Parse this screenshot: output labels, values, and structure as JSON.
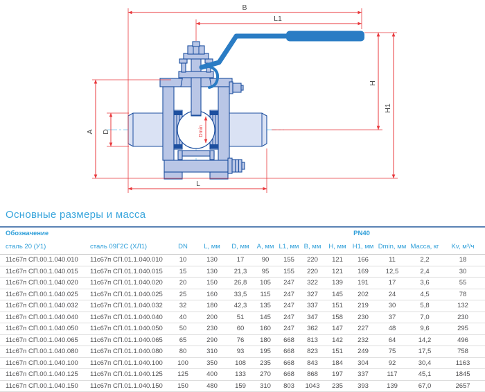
{
  "drawing": {
    "dim_labels": {
      "B": "B",
      "L1": "L1",
      "H": "H",
      "H1": "H1",
      "A": "A",
      "D": "D",
      "Dmin": "Dmin",
      "L": "L"
    },
    "colors": {
      "dimension_red": "#e8393d",
      "body_fill": "#b9c6e6",
      "body_stroke": "#1d4f9f",
      "pipe_fill": "#dae2f4",
      "handle_blue": "#2a7cc4",
      "centerline_blue": "#8fd2f3",
      "dim_label_gray": "#4d4d4d"
    }
  },
  "table": {
    "title": "Основные размеры и масса",
    "group_headers": {
      "designation": "Обозначение",
      "pressure": "PN40"
    },
    "columns": [
      "сталь 20 (У1)",
      "сталь 09Г2С (ХЛ1)",
      "DN",
      "L, мм",
      "D, мм",
      "A, мм",
      "L1, мм",
      "B, мм",
      "H, мм",
      "H1, мм",
      "Dmin, мм",
      "Масса, кг",
      "Kv, м³/ч"
    ],
    "accent_colors": {
      "title": "#38a5dc",
      "header": "#2f9fd9",
      "rule": "#5a82b4",
      "row_text": "#4f4f51"
    },
    "rows": [
      [
        "11с67п СП.00.1.040.010",
        "11с67п СП.01.1.040.010",
        "10",
        "130",
        "17",
        "90",
        "155",
        "220",
        "121",
        "166",
        "11",
        "2,2",
        "18"
      ],
      [
        "11с67п СП.00.1.040.015",
        "11с67п СП.01.1.040.015",
        "15",
        "130",
        "21,3",
        "95",
        "155",
        "220",
        "121",
        "169",
        "12,5",
        "2,4",
        "30"
      ],
      [
        "11с67п СП.00.1.040.020",
        "11с67п СП.01.1.040.020",
        "20",
        "150",
        "26,8",
        "105",
        "247",
        "322",
        "139",
        "191",
        "17",
        "3,6",
        "55"
      ],
      [
        "11с67п СП.00.1.040.025",
        "11с67п СП.01.1.040.025",
        "25",
        "160",
        "33,5",
        "115",
        "247",
        "327",
        "145",
        "202",
        "24",
        "4,5",
        "78"
      ],
      [
        "11с67п СП.00.1.040.032",
        "11с67п СП.01.1.040.032",
        "32",
        "180",
        "42,3",
        "135",
        "247",
        "337",
        "151",
        "219",
        "30",
        "5,8",
        "132"
      ],
      [
        "11с67п СП.00.1.040.040",
        "11с67п СП.01.1.040.040",
        "40",
        "200",
        "51",
        "145",
        "247",
        "347",
        "158",
        "230",
        "37",
        "7,0",
        "230"
      ],
      [
        "11с67п СП.00.1.040.050",
        "11с67п СП.01.1.040.050",
        "50",
        "230",
        "60",
        "160",
        "247",
        "362",
        "147",
        "227",
        "48",
        "9,6",
        "295"
      ],
      [
        "11с67п СП.00.1.040.065",
        "11с67п СП.01.1.040.065",
        "65",
        "290",
        "76",
        "180",
        "668",
        "813",
        "142",
        "232",
        "64",
        "14,2",
        "496"
      ],
      [
        "11с67п СП.00.1.040.080",
        "11с67п СП.01.1.040.080",
        "80",
        "310",
        "93",
        "195",
        "668",
        "823",
        "151",
        "249",
        "75",
        "17,5",
        "758"
      ],
      [
        "11с67п СП.00.1.040.100",
        "11с67п СП.01.1.040.100",
        "100",
        "350",
        "108",
        "235",
        "668",
        "843",
        "184",
        "304",
        "92",
        "30,4",
        "1163"
      ],
      [
        "11с67п СП.00.1.040.125",
        "11с67п СП.01.1.040.125",
        "125",
        "400",
        "133",
        "270",
        "668",
        "868",
        "197",
        "337",
        "117",
        "45,1",
        "1845"
      ],
      [
        "11с67п СП.00.1.040.150",
        "11с67п СП.01.1.040.150",
        "150",
        "480",
        "159",
        "310",
        "803",
        "1043",
        "235",
        "393",
        "139",
        "67,0",
        "2657"
      ]
    ]
  }
}
